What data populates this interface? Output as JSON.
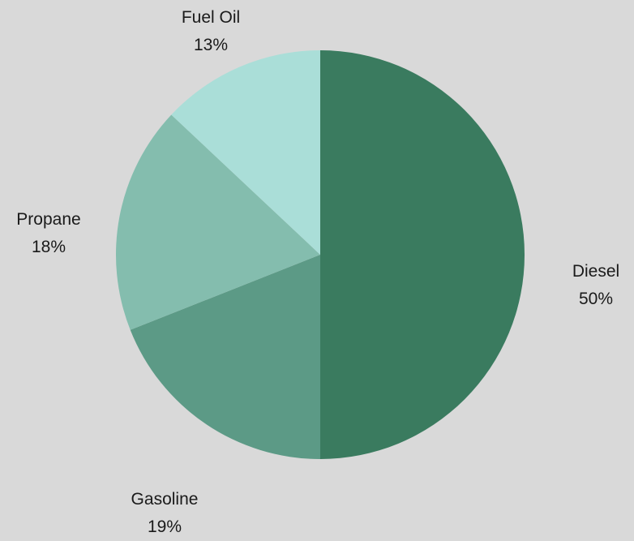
{
  "chart_data": {
    "type": "pie",
    "slices": [
      {
        "label": "Diesel",
        "value": 50,
        "value_label": "50%",
        "color": "#3a7b5f"
      },
      {
        "label": "Gasoline",
        "value": 19,
        "value_label": "19%",
        "color": "#5c9a86"
      },
      {
        "label": "Propane",
        "value": 18,
        "value_label": "18%",
        "color": "#84bdae"
      },
      {
        "label": "Fuel Oil",
        "value": 13,
        "value_label": "13%",
        "color": "#aaded8"
      }
    ],
    "start_angle": "12 o'clock",
    "direction": "clockwise",
    "legend": "none",
    "background": "#d9d9d9"
  }
}
